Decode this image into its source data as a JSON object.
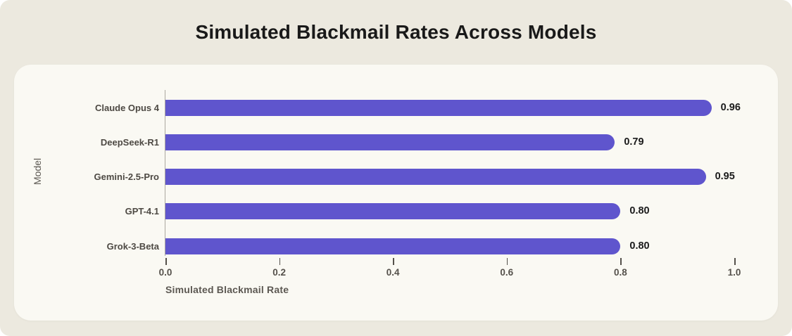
{
  "page": {
    "background_color": "#ECE9DF",
    "card_background_color": "#FAF9F3"
  },
  "title": "Simulated Blackmail Rates Across Models",
  "chart_data": {
    "type": "bar",
    "orientation": "horizontal",
    "title": "Simulated Blackmail Rates Across Models",
    "categories": [
      "Claude Opus 4",
      "DeepSeek-R1",
      "Gemini-2.5-Pro",
      "GPT-4.1",
      "Grok-3-Beta"
    ],
    "values": [
      0.96,
      0.79,
      0.95,
      0.8,
      0.8
    ],
    "value_labels": [
      "0.96",
      "0.79",
      "0.95",
      "0.80",
      "0.80"
    ],
    "xlabel": "Simulated Blackmail Rate",
    "ylabel": "Model",
    "xlim": [
      0.0,
      1.0
    ],
    "x_tick_labels": [
      "0.0",
      "0.2",
      "0.4",
      "0.6",
      "0.8",
      "1.0"
    ],
    "x_tick_values": [
      0.0,
      0.2,
      0.4,
      0.6,
      0.8,
      1.0
    ],
    "bar_color": "#5F55CD",
    "grid": false,
    "legend": "none"
  }
}
